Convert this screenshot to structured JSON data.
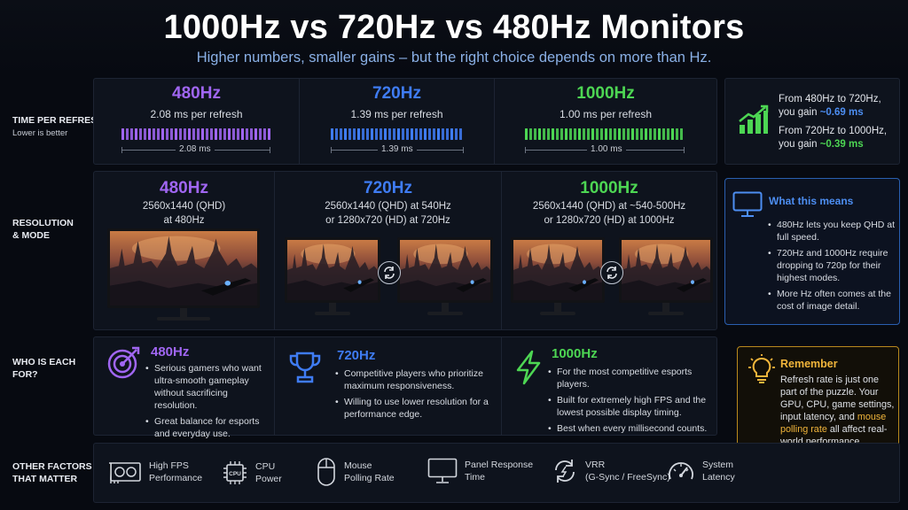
{
  "header": {
    "title": "1000Hz vs 720Hz vs 480Hz Monitors",
    "subtitle": "Higher numbers, smaller gains – but the right choice depends on more than Hz."
  },
  "rows": {
    "time": {
      "label": "TIME   PER REFRESH",
      "sub": "Lower is better"
    },
    "resolution": {
      "label": "RESOLUTION\n& MODE"
    },
    "who": {
      "label": "WHO IS EACH\nFOR?"
    },
    "factors": {
      "label": "OTHER FACTORS\nTHAT MATTER"
    }
  },
  "colors": {
    "purple": "#a066f2",
    "blue": "#3f7cf3",
    "green": "#4dd653",
    "yellow": "#f1b53b"
  },
  "time_row": [
    {
      "hz": "480Hz",
      "ms_text": "2.08 ms per refresh",
      "measure": "2.08 ms",
      "color": "purple"
    },
    {
      "hz": "720Hz",
      "ms_text": "1.39 ms per refresh",
      "measure": "1.39 ms",
      "color": "blue"
    },
    {
      "hz": "1000Hz",
      "ms_text": "1.00 ms per refresh",
      "measure": "1.00 ms",
      "color": "green"
    }
  ],
  "gain_box": {
    "line1a": "From 480Hz to 720Hz,",
    "line1b_prefix": "you gain ",
    "line1b_value": "~0.69 ms",
    "line2a": "From 720Hz to 1000Hz,",
    "line2b_prefix": "you gain ",
    "line2b_value": "~0.39 ms",
    "icon": "bar-chart-up-icon"
  },
  "resolution_row": [
    {
      "hz": "480Hz",
      "line1": "2560x1440 (QHD)",
      "line2": "at 480Hz"
    },
    {
      "hz": "720Hz",
      "line1": "2560x1440 (QHD) at 540Hz",
      "line2": "or 1280x720 (HD) at 720Hz"
    },
    {
      "hz": "1000Hz",
      "line1": "2560x1440 (QHD) at ~540-500Hz",
      "line2": "or 1280x720 (HD) at 1000Hz"
    }
  ],
  "what_means": {
    "title": "What this means",
    "icon": "monitor-icon",
    "bullets": [
      "480Hz lets you keep QHD at full speed.",
      "720Hz and 1000Hz require dropping to 720p for their highest modes.",
      "More Hz often comes at the cost of image detail."
    ]
  },
  "who_row": [
    {
      "hz": "480Hz",
      "icon": "target-icon",
      "bullets": [
        "Serious gamers who want ultra-smooth gameplay without sacrificing resolution.",
        "Great balance for esports and everyday use."
      ]
    },
    {
      "hz": "720Hz",
      "icon": "trophy-icon",
      "bullets": [
        "Competitive players who prioritize maximum responsiveness.",
        "Willing to use lower resolution for a performance edge."
      ]
    },
    {
      "hz": "1000Hz",
      "icon": "lightning-icon",
      "bullets": [
        "For the most competitive esports players.",
        "Built for extremely high FPS and the lowest possible display timing.",
        "Best when every millisecond counts."
      ]
    }
  ],
  "remember": {
    "title": "Remember",
    "icon": "lightbulb-icon",
    "text_a": "Refresh rate is just one part of the puzzle. Your GPU, CPU, game settings, input latency, and ",
    "text_hl": "mouse polling rate",
    "text_b": " all affect real-world performance."
  },
  "factors": [
    {
      "label": "High FPS\nPerformance",
      "icon": "gpu-icon"
    },
    {
      "label": "CPU\nPower",
      "icon": "cpu-icon"
    },
    {
      "label": "Mouse\nPolling Rate",
      "icon": "mouse-icon"
    },
    {
      "label": "Panel Response\nTime",
      "icon": "display-icon"
    },
    {
      "label": "VRR\n(G-Sync / FreeSync)",
      "icon": "sync-icon"
    },
    {
      "label": "System\nLatency",
      "icon": "gauge-icon"
    }
  ],
  "cpu_chip_text": "CPU"
}
